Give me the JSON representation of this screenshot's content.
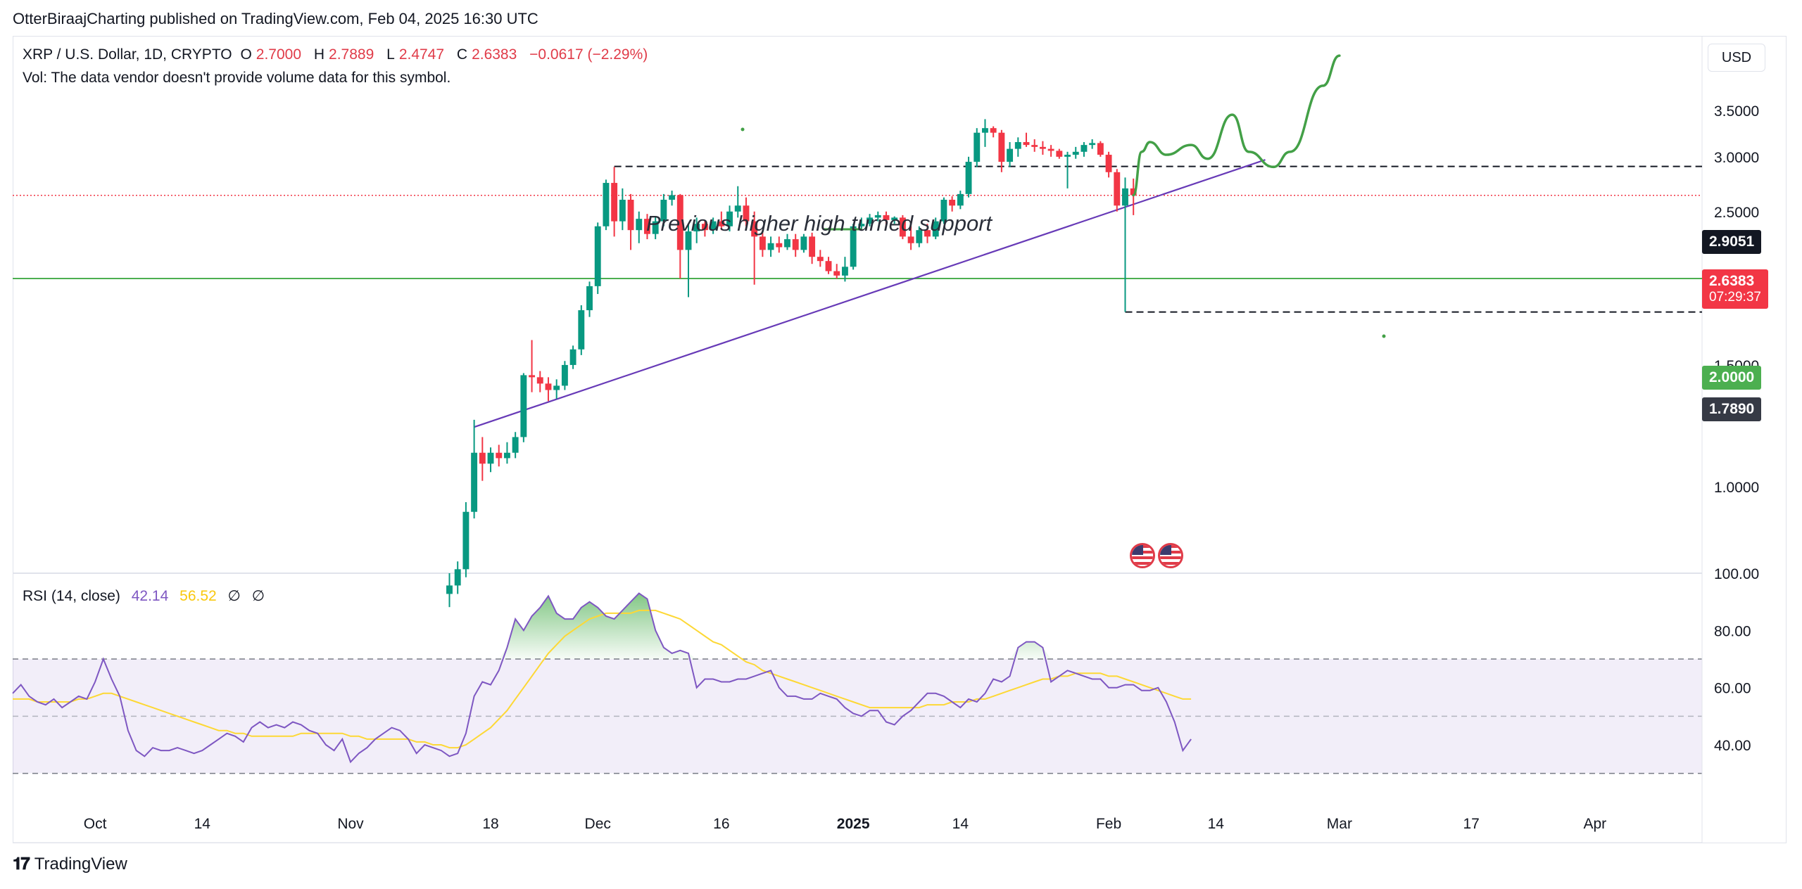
{
  "header": {
    "publisher_line": "OtterBiraajCharting published on TradingView.com, Feb 04, 2025 16:30 UTC"
  },
  "symbol": {
    "name": "XRP / U.S. Dollar, 1D, CRYPTO",
    "open_label": "O",
    "open": "2.7000",
    "high_label": "H",
    "high": "2.7889",
    "low_label": "L",
    "low": "2.4747",
    "close_label": "C",
    "close": "2.6383",
    "change": "−0.0617 (−2.29%)",
    "vol_note": "Vol: The data vendor doesn't provide volume data for this symbol."
  },
  "currency_button": "USD",
  "annotation": "Previous higher high turned support",
  "price_tags": {
    "resistance": "2.9051",
    "current": "2.6383",
    "countdown": "07:29:37",
    "support": "2.0000",
    "low": "1.7890"
  },
  "rsi_legend": {
    "label": "RSI (14, close)",
    "rsi": "42.14",
    "ma": "56.52",
    "n1": "∅",
    "n2": "∅"
  },
  "footer": {
    "brand": "TradingView",
    "icon": "tradingview-logo-icon"
  },
  "colors": {
    "up": "#089981",
    "down": "#f23645",
    "rsi": "#7e57c2",
    "rsi_ma": "#fdd835",
    "support": "#4caf50",
    "projection": "#43a047",
    "trendline": "#673ab7"
  },
  "chart_data": [
    {
      "type": "candlestick",
      "title": "XRP / U.S. Dollar, 1D, CRYPTO",
      "y_ticks": [
        "1.0000",
        "1.5000",
        "2.0000",
        "2.5000",
        "3.0000",
        "3.5000"
      ],
      "y_scale": "log",
      "x_ticks": [
        "Oct",
        "14",
        "Nov",
        "18",
        "Dec",
        "16",
        "2025",
        "14",
        "Feb",
        "14",
        "Mar",
        "17",
        "Apr"
      ],
      "horizontal_levels": [
        {
          "value": 2.9051,
          "style": "dashed"
        },
        {
          "value": 2.6383,
          "style": "dotted"
        },
        {
          "value": 2.0,
          "style": "solid"
        },
        {
          "value": 1.789,
          "style": "dashed"
        }
      ],
      "trendline": [
        {
          "x": "2024-11-16",
          "y": 1.22
        },
        {
          "x": "2025-02-20",
          "y": 2.97
        }
      ],
      "projection": [
        {
          "x": "2025-02-04",
          "y": 2.64
        },
        {
          "x": "2025-02-05",
          "y": 3.05
        },
        {
          "x": "2025-02-06",
          "y": 3.15
        },
        {
          "x": "2025-02-08",
          "y": 3.02
        },
        {
          "x": "2025-02-11",
          "y": 3.12
        },
        {
          "x": "2025-02-13",
          "y": 2.98
        },
        {
          "x": "2025-02-16",
          "y": 3.45
        },
        {
          "x": "2025-02-18",
          "y": 3.05
        },
        {
          "x": "2025-02-21",
          "y": 2.9
        },
        {
          "x": "2025-02-23",
          "y": 3.05
        },
        {
          "x": "2025-02-27",
          "y": 3.8
        },
        {
          "x": "2025-03-01",
          "y": 4.2
        }
      ],
      "candles": [
        {
          "d": "2024-11-13",
          "o": 0.7,
          "h": 0.75,
          "l": 0.67,
          "c": 0.72
        },
        {
          "d": "2024-11-14",
          "o": 0.72,
          "h": 0.78,
          "l": 0.7,
          "c": 0.76
        },
        {
          "d": "2024-11-15",
          "o": 0.76,
          "h": 0.95,
          "l": 0.74,
          "c": 0.92
        },
        {
          "d": "2024-11-16",
          "o": 0.92,
          "h": 1.25,
          "l": 0.9,
          "c": 1.12
        },
        {
          "d": "2024-11-17",
          "o": 1.12,
          "h": 1.18,
          "l": 1.02,
          "c": 1.08
        },
        {
          "d": "2024-11-18",
          "o": 1.08,
          "h": 1.14,
          "l": 1.05,
          "c": 1.12
        },
        {
          "d": "2024-11-19",
          "o": 1.12,
          "h": 1.15,
          "l": 1.07,
          "c": 1.1
        },
        {
          "d": "2024-11-20",
          "o": 1.1,
          "h": 1.16,
          "l": 1.08,
          "c": 1.12
        },
        {
          "d": "2024-11-21",
          "o": 1.12,
          "h": 1.2,
          "l": 1.1,
          "c": 1.18
        },
        {
          "d": "2024-11-22",
          "o": 1.18,
          "h": 1.46,
          "l": 1.16,
          "c": 1.45
        },
        {
          "d": "2024-11-23",
          "o": 1.45,
          "h": 1.63,
          "l": 1.37,
          "c": 1.44
        },
        {
          "d": "2024-11-24",
          "o": 1.44,
          "h": 1.47,
          "l": 1.37,
          "c": 1.41
        },
        {
          "d": "2024-11-25",
          "o": 1.41,
          "h": 1.44,
          "l": 1.33,
          "c": 1.38
        },
        {
          "d": "2024-11-26",
          "o": 1.38,
          "h": 1.43,
          "l": 1.34,
          "c": 1.4
        },
        {
          "d": "2024-11-27",
          "o": 1.4,
          "h": 1.52,
          "l": 1.38,
          "c": 1.5
        },
        {
          "d": "2024-11-28",
          "o": 1.5,
          "h": 1.6,
          "l": 1.48,
          "c": 1.58
        },
        {
          "d": "2024-11-29",
          "o": 1.58,
          "h": 1.83,
          "l": 1.55,
          "c": 1.8
        },
        {
          "d": "2024-11-30",
          "o": 1.8,
          "h": 1.98,
          "l": 1.76,
          "c": 1.95
        },
        {
          "d": "2024-12-01",
          "o": 1.95,
          "h": 2.41,
          "l": 1.9,
          "c": 2.38
        },
        {
          "d": "2024-12-02",
          "o": 2.38,
          "h": 2.78,
          "l": 2.35,
          "c": 2.75
        },
        {
          "d": "2024-12-03",
          "o": 2.75,
          "h": 2.9,
          "l": 2.3,
          "c": 2.42
        },
        {
          "d": "2024-12-04",
          "o": 2.42,
          "h": 2.7,
          "l": 2.35,
          "c": 2.6
        },
        {
          "d": "2024-12-05",
          "o": 2.6,
          "h": 2.65,
          "l": 2.2,
          "c": 2.35
        },
        {
          "d": "2024-12-06",
          "o": 2.35,
          "h": 2.5,
          "l": 2.25,
          "c": 2.44
        },
        {
          "d": "2024-12-07",
          "o": 2.44,
          "h": 2.48,
          "l": 2.28,
          "c": 2.32
        },
        {
          "d": "2024-12-08",
          "o": 2.32,
          "h": 2.46,
          "l": 2.28,
          "c": 2.42
        },
        {
          "d": "2024-12-09",
          "o": 2.42,
          "h": 2.65,
          "l": 2.38,
          "c": 2.6
        },
        {
          "d": "2024-12-10",
          "o": 2.6,
          "h": 2.68,
          "l": 2.55,
          "c": 2.64
        },
        {
          "d": "2024-12-11",
          "o": 2.64,
          "h": 2.65,
          "l": 2.0,
          "c": 2.2
        },
        {
          "d": "2024-12-12",
          "o": 2.2,
          "h": 2.4,
          "l": 1.88,
          "c": 2.34
        },
        {
          "d": "2024-12-13",
          "o": 2.34,
          "h": 2.45,
          "l": 2.25,
          "c": 2.4
        },
        {
          "d": "2024-12-14",
          "o": 2.4,
          "h": 2.42,
          "l": 2.3,
          "c": 2.35
        },
        {
          "d": "2024-12-15",
          "o": 2.35,
          "h": 2.45,
          "l": 2.32,
          "c": 2.42
        },
        {
          "d": "2024-12-16",
          "o": 2.42,
          "h": 2.5,
          "l": 2.35,
          "c": 2.38
        },
        {
          "d": "2024-12-17",
          "o": 2.38,
          "h": 2.55,
          "l": 2.34,
          "c": 2.5
        },
        {
          "d": "2024-12-18",
          "o": 2.5,
          "h": 2.72,
          "l": 2.45,
          "c": 2.55
        },
        {
          "d": "2024-12-19",
          "o": 2.55,
          "h": 2.62,
          "l": 2.38,
          "c": 2.42
        },
        {
          "d": "2024-12-20",
          "o": 2.42,
          "h": 2.5,
          "l": 1.96,
          "c": 2.3
        },
        {
          "d": "2024-12-21",
          "o": 2.3,
          "h": 2.35,
          "l": 2.15,
          "c": 2.2
        },
        {
          "d": "2024-12-22",
          "o": 2.2,
          "h": 2.3,
          "l": 2.15,
          "c": 2.25
        },
        {
          "d": "2024-12-23",
          "o": 2.25,
          "h": 2.3,
          "l": 2.18,
          "c": 2.22
        },
        {
          "d": "2024-12-24",
          "o": 2.22,
          "h": 2.32,
          "l": 2.2,
          "c": 2.28
        },
        {
          "d": "2024-12-25",
          "o": 2.28,
          "h": 2.32,
          "l": 2.15,
          "c": 2.2
        },
        {
          "d": "2024-12-26",
          "o": 2.2,
          "h": 2.32,
          "l": 2.18,
          "c": 2.3
        },
        {
          "d": "2024-12-27",
          "o": 2.3,
          "h": 2.33,
          "l": 2.1,
          "c": 2.15
        },
        {
          "d": "2024-12-28",
          "o": 2.15,
          "h": 2.2,
          "l": 2.08,
          "c": 2.12
        },
        {
          "d": "2024-12-29",
          "o": 2.12,
          "h": 2.15,
          "l": 2.03,
          "c": 2.05
        },
        {
          "d": "2024-12-30",
          "o": 2.05,
          "h": 2.1,
          "l": 2.0,
          "c": 2.02
        },
        {
          "d": "2024-12-31",
          "o": 2.02,
          "h": 2.15,
          "l": 1.98,
          "c": 2.08
        },
        {
          "d": "2025-01-01",
          "o": 2.08,
          "h": 2.4,
          "l": 2.06,
          "c": 2.38
        },
        {
          "d": "2025-01-02",
          "o": 2.38,
          "h": 2.45,
          "l": 2.35,
          "c": 2.4
        },
        {
          "d": "2025-01-03",
          "o": 2.4,
          "h": 2.48,
          "l": 2.38,
          "c": 2.45
        },
        {
          "d": "2025-01-04",
          "o": 2.45,
          "h": 2.5,
          "l": 2.42,
          "c": 2.47
        },
        {
          "d": "2025-01-05",
          "o": 2.47,
          "h": 2.5,
          "l": 2.38,
          "c": 2.43
        },
        {
          "d": "2025-01-06",
          "o": 2.43,
          "h": 2.46,
          "l": 2.4,
          "c": 2.45
        },
        {
          "d": "2025-01-07",
          "o": 2.45,
          "h": 2.47,
          "l": 2.28,
          "c": 2.3
        },
        {
          "d": "2025-01-08",
          "o": 2.3,
          "h": 2.38,
          "l": 2.2,
          "c": 2.25
        },
        {
          "d": "2025-01-09",
          "o": 2.25,
          "h": 2.38,
          "l": 2.22,
          "c": 2.35
        },
        {
          "d": "2025-01-10",
          "o": 2.35,
          "h": 2.4,
          "l": 2.25,
          "c": 2.3
        },
        {
          "d": "2025-01-11",
          "o": 2.3,
          "h": 2.45,
          "l": 2.28,
          "c": 2.42
        },
        {
          "d": "2025-01-12",
          "o": 2.42,
          "h": 2.62,
          "l": 2.4,
          "c": 2.6
        },
        {
          "d": "2025-01-13",
          "o": 2.6,
          "h": 2.63,
          "l": 2.5,
          "c": 2.55
        },
        {
          "d": "2025-01-14",
          "o": 2.55,
          "h": 2.68,
          "l": 2.52,
          "c": 2.65
        },
        {
          "d": "2025-01-15",
          "o": 2.65,
          "h": 3.0,
          "l": 2.62,
          "c": 2.95
        },
        {
          "d": "2025-01-16",
          "o": 2.95,
          "h": 3.3,
          "l": 2.9,
          "c": 3.25
        },
        {
          "d": "2025-01-17",
          "o": 3.25,
          "h": 3.4,
          "l": 3.1,
          "c": 3.3
        },
        {
          "d": "2025-01-18",
          "o": 3.3,
          "h": 3.32,
          "l": 3.2,
          "c": 3.25
        },
        {
          "d": "2025-01-19",
          "o": 3.25,
          "h": 3.28,
          "l": 2.85,
          "c": 2.95
        },
        {
          "d": "2025-01-20",
          "o": 2.95,
          "h": 3.15,
          "l": 2.9,
          "c": 3.08
        },
        {
          "d": "2025-01-21",
          "o": 3.08,
          "h": 3.2,
          "l": 3.0,
          "c": 3.15
        },
        {
          "d": "2025-01-22",
          "o": 3.15,
          "h": 3.25,
          "l": 3.1,
          "c": 3.12
        },
        {
          "d": "2025-01-23",
          "o": 3.12,
          "h": 3.18,
          "l": 3.05,
          "c": 3.1
        },
        {
          "d": "2025-01-24",
          "o": 3.1,
          "h": 3.16,
          "l": 3.02,
          "c": 3.08
        },
        {
          "d": "2025-01-25",
          "o": 3.08,
          "h": 3.12,
          "l": 3.0,
          "c": 3.06
        },
        {
          "d": "2025-01-26",
          "o": 3.06,
          "h": 3.08,
          "l": 2.98,
          "c": 3.0
        },
        {
          "d": "2025-01-27",
          "o": 3.0,
          "h": 3.05,
          "l": 2.7,
          "c": 3.02
        },
        {
          "d": "2025-01-28",
          "o": 3.02,
          "h": 3.1,
          "l": 2.98,
          "c": 3.05
        },
        {
          "d": "2025-01-29",
          "o": 3.05,
          "h": 3.15,
          "l": 3.0,
          "c": 3.12
        },
        {
          "d": "2025-01-30",
          "o": 3.12,
          "h": 3.18,
          "l": 3.08,
          "c": 3.14
        },
        {
          "d": "2025-01-31",
          "o": 3.14,
          "h": 3.16,
          "l": 3.0,
          "c": 3.02
        },
        {
          "d": "2025-02-01",
          "o": 3.02,
          "h": 3.05,
          "l": 2.8,
          "c": 2.85
        },
        {
          "d": "2025-02-02",
          "o": 2.85,
          "h": 2.88,
          "l": 2.5,
          "c": 2.55
        },
        {
          "d": "2025-02-03",
          "o": 2.55,
          "h": 2.8,
          "l": 1.79,
          "c": 2.7
        },
        {
          "d": "2025-02-04",
          "o": 2.7,
          "h": 2.79,
          "l": 2.47,
          "c": 2.64
        }
      ]
    },
    {
      "type": "line",
      "title": "RSI (14, close)",
      "y_ticks": [
        "40.00",
        "60.00",
        "80.00",
        "100.00"
      ],
      "ylim": [
        25,
        100
      ],
      "bands": [
        30,
        50,
        70
      ],
      "series": [
        {
          "name": "RSI",
          "x_start": "2024-09-21",
          "values": [
            58,
            61,
            57,
            55,
            54,
            56,
            53,
            55,
            57,
            56,
            62,
            70,
            63,
            57,
            45,
            38,
            36,
            39,
            38,
            38,
            39,
            38,
            37,
            38,
            40,
            42,
            44,
            43,
            41,
            46,
            48,
            46,
            47,
            46,
            48,
            47,
            45,
            44,
            40,
            38,
            42,
            34,
            37,
            39,
            42,
            44,
            46,
            45,
            42,
            37,
            40,
            39,
            38,
            36,
            37,
            44,
            57,
            62,
            61,
            66,
            74,
            84,
            80,
            85,
            88,
            92,
            86,
            84,
            84,
            88,
            90,
            88,
            85,
            84,
            87,
            90,
            93,
            91,
            80,
            74,
            72,
            73,
            72,
            60,
            63,
            63,
            62,
            62,
            63,
            63,
            64,
            65,
            66,
            60,
            57,
            57,
            56,
            56,
            58,
            57,
            56,
            53,
            51,
            50,
            52,
            52,
            48,
            47,
            50,
            52,
            55,
            58,
            58,
            57,
            55,
            53,
            56,
            55,
            58,
            63,
            62,
            64,
            74,
            76,
            76,
            74,
            62,
            64,
            66,
            65,
            64,
            63,
            63,
            60,
            60,
            61,
            61,
            59,
            59,
            60,
            55,
            48,
            38,
            42
          ]
        },
        {
          "name": "RSI MA",
          "x_start": "2024-09-21",
          "values": [
            56,
            56,
            56,
            55,
            55,
            55,
            55,
            55,
            56,
            56,
            57,
            58,
            58,
            57,
            56,
            55,
            54,
            53,
            52,
            51,
            50,
            49,
            48,
            47,
            46,
            45,
            45,
            44,
            44,
            43,
            43,
            43,
            43,
            43,
            43,
            44,
            44,
            44,
            44,
            44,
            44,
            43,
            43,
            42,
            42,
            42,
            42,
            42,
            42,
            41,
            41,
            40,
            40,
            39,
            39,
            40,
            42,
            44,
            46,
            49,
            52,
            56,
            60,
            64,
            68,
            72,
            75,
            78,
            80,
            82,
            84,
            85,
            86,
            86,
            86,
            86,
            87,
            87,
            87,
            86,
            85,
            84,
            82,
            80,
            78,
            76,
            75,
            73,
            71,
            69,
            68,
            66,
            65,
            64,
            63,
            62,
            61,
            60,
            59,
            58,
            57,
            56,
            55,
            54,
            53,
            53,
            53,
            53,
            53,
            53,
            53,
            54,
            54,
            54,
            55,
            55,
            55,
            56,
            56,
            57,
            58,
            59,
            60,
            61,
            62,
            63,
            63,
            64,
            64,
            65,
            65,
            65,
            65,
            64,
            64,
            63,
            62,
            61,
            60,
            59,
            58,
            57,
            56,
            56
          ]
        }
      ]
    }
  ]
}
